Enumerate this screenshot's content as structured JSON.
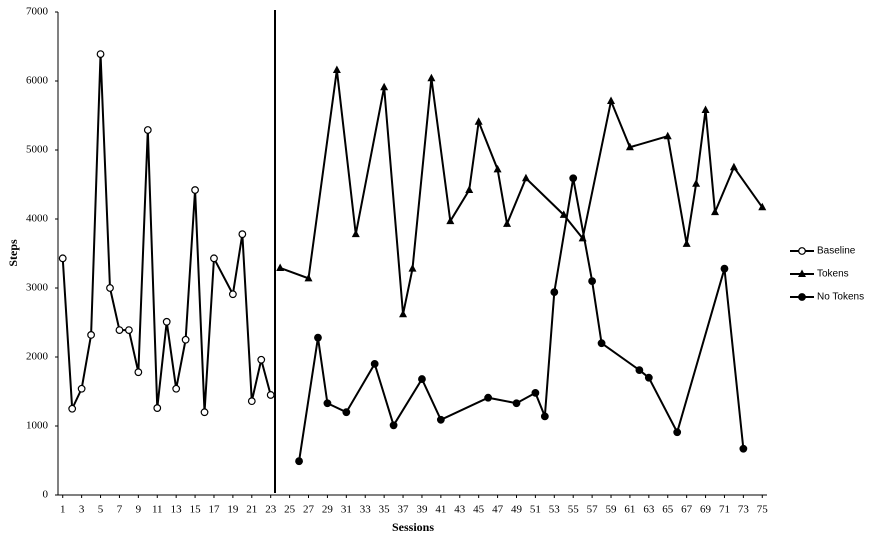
{
  "chart_data": {
    "type": "line",
    "x_label": "Sessions",
    "y_label": "Steps",
    "xlim": [
      0.5,
      75.5
    ],
    "xticks": [
      1,
      3,
      5,
      7,
      9,
      11,
      13,
      15,
      17,
      19,
      21,
      23,
      25,
      27,
      29,
      31,
      33,
      35,
      37,
      39,
      41,
      43,
      45,
      47,
      49,
      51,
      53,
      55,
      57,
      59,
      61,
      63,
      65,
      67,
      69,
      71,
      73,
      75
    ],
    "ylim": [
      0,
      7000
    ],
    "yticks": [
      0,
      1000,
      2000,
      3000,
      4000,
      5000,
      6000,
      7000
    ],
    "grid": false,
    "legend": "right",
    "series": [
      {
        "name": "Baseline",
        "color": "#000000",
        "marker": "open-circle",
        "x": [
          1,
          2,
          3,
          4,
          5,
          6,
          7,
          8,
          9,
          10,
          11,
          12,
          13,
          14,
          15,
          16,
          17,
          19,
          20,
          21,
          22,
          23
        ],
        "values": [
          3430,
          1250,
          1540,
          2320,
          6390,
          3000,
          2390,
          2390,
          1780,
          5290,
          1260,
          2510,
          1540,
          2250,
          4420,
          1200,
          3430,
          2910,
          3780,
          1360,
          1960,
          1450
        ]
      },
      {
        "name": "Tokens",
        "color": "#000000",
        "marker": "triangle",
        "x": [
          24,
          27,
          30,
          32,
          35,
          37,
          38,
          40,
          42,
          44,
          45,
          47,
          48,
          50,
          54,
          56,
          59,
          61,
          65,
          67,
          68,
          69,
          70,
          72,
          75
        ],
        "values": [
          3290,
          3140,
          6160,
          3780,
          5910,
          2620,
          3280,
          6040,
          3970,
          4420,
          5410,
          4720,
          3930,
          4590,
          4060,
          3720,
          5710,
          5040,
          5200,
          3640,
          4510,
          5580,
          4100,
          4750,
          4170
        ]
      },
      {
        "name": "No Tokens",
        "color": "#000000",
        "marker": "filled-circle",
        "x": [
          26,
          28,
          29,
          31,
          34,
          36,
          39,
          41,
          46,
          49,
          51,
          52,
          53,
          55,
          57,
          58,
          62,
          63,
          66,
          71,
          73
        ],
        "values": [
          490,
          2280,
          1330,
          1200,
          1900,
          1010,
          1680,
          1090,
          1410,
          1330,
          1480,
          1140,
          2940,
          4590,
          3100,
          2200,
          1810,
          1700,
          910,
          3280,
          670
        ]
      }
    ]
  }
}
